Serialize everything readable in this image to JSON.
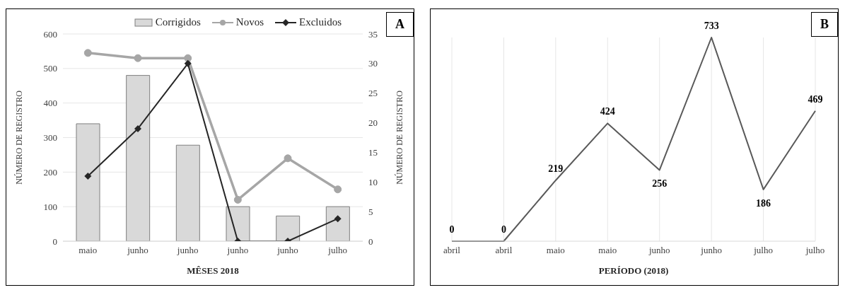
{
  "chart_data": [
    {
      "type": "bar",
      "annotations": [
        "A"
      ],
      "xlabel": "MÊSES 2018",
      "ylabel": "NÚMERO DE REGISTRO",
      "y2label": "NÚMERO DE REGISTRO",
      "categories": [
        "maio",
        "junho",
        "junho",
        "junho",
        "junho",
        "julho"
      ],
      "series": [
        {
          "name": "Corrigidos",
          "color": "#d9d9d9",
          "values": [
            340,
            480,
            278,
            100,
            73,
            100
          ]
        },
        {
          "name": "Novos",
          "type": "line",
          "color": "#a6a6a6",
          "marker": "circle",
          "values": [
            545,
            530,
            530,
            120,
            240,
            150
          ]
        },
        {
          "name": "Excluidos",
          "type": "line",
          "axis": "y2",
          "color": "#262626",
          "marker": "diamond",
          "values": [
            11,
            19,
            30,
            0,
            0,
            3.8
          ]
        }
      ],
      "ylim": [
        0,
        600
      ],
      "yticks": [
        0,
        100,
        200,
        300,
        400,
        500,
        600
      ],
      "y2lim": [
        0,
        35
      ],
      "y2ticks": [
        0,
        5,
        10,
        15,
        20,
        25,
        30,
        35
      ],
      "grid": "y",
      "legend": "top right"
    },
    {
      "type": "line",
      "annotations": [
        "B"
      ],
      "xlabel": "PERÍODO (2018)",
      "categories": [
        "abril",
        "abril",
        "maio",
        "maio",
        "junho",
        "junho",
        "julho",
        "julho"
      ],
      "series": [
        {
          "color": "#595959",
          "values": [
            0,
            0,
            219,
            424,
            256,
            733,
            186,
            469
          ]
        }
      ],
      "data_labels": true,
      "grid": "x",
      "marker": "none",
      "tick_labels": "x"
    }
  ]
}
